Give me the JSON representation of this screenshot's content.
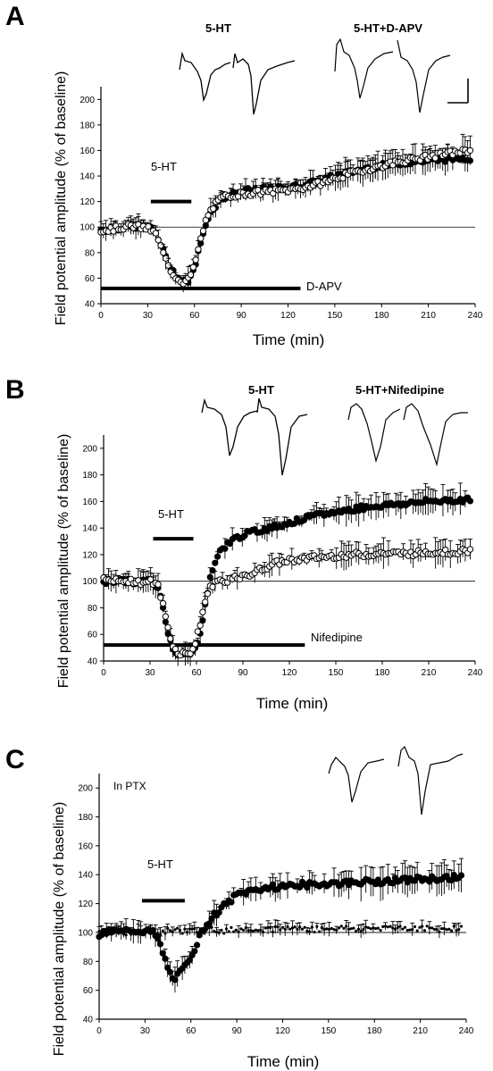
{
  "chart_data": [
    {
      "panel": "A",
      "type": "scatter",
      "xlabel": "Time (min)",
      "ylabel": "Field potential amplitude (% of baseline)",
      "xlim": [
        0,
        240
      ],
      "ylim": [
        40,
        210
      ],
      "xticks": [
        0,
        30,
        60,
        90,
        120,
        150,
        180,
        210,
        240
      ],
      "yticks": [
        40,
        60,
        80,
        100,
        120,
        140,
        160,
        180,
        200
      ],
      "reference_line": 100,
      "trace_labels": [
        "5-HT",
        "5-HT+D-APV"
      ],
      "bars": [
        {
          "label": "5-HT",
          "start": 32,
          "end": 58,
          "level": 120
        },
        {
          "label": "D-APV",
          "start": 0,
          "end": 128,
          "level": 52
        }
      ],
      "scale_bar": true,
      "series": [
        {
          "marker": "filled",
          "x": [
            0,
            5,
            10,
            15,
            20,
            25,
            30,
            35,
            38,
            41,
            44,
            47,
            50,
            53,
            56,
            59,
            62,
            65,
            68,
            72,
            76,
            80,
            85,
            90,
            100,
            110,
            120,
            130,
            140,
            150,
            160,
            170,
            180,
            190,
            200,
            210,
            220,
            230,
            238
          ],
          "y": [
            98,
            98,
            99,
            100,
            100,
            101,
            100,
            96,
            88,
            78,
            70,
            64,
            60,
            57,
            58,
            64,
            78,
            92,
            106,
            115,
            120,
            124,
            126,
            128,
            129,
            130,
            131,
            133,
            136,
            140,
            143,
            146,
            148,
            150,
            151,
            152,
            153,
            154,
            154
          ]
        },
        {
          "marker": "open",
          "x": [
            0,
            5,
            10,
            15,
            20,
            25,
            30,
            35,
            38,
            41,
            44,
            47,
            50,
            53,
            56,
            59,
            62,
            65,
            68,
            72,
            76,
            80,
            85,
            90,
            100,
            110,
            120,
            130,
            140,
            150,
            160,
            170,
            180,
            190,
            200,
            210,
            220,
            230,
            238
          ],
          "y": [
            97,
            98,
            99,
            100,
            101,
            100,
            99,
            95,
            86,
            76,
            68,
            62,
            59,
            57,
            59,
            66,
            80,
            95,
            108,
            116,
            121,
            124,
            125,
            126,
            127,
            128,
            129,
            131,
            134,
            138,
            142,
            145,
            148,
            151,
            153,
            155,
            157,
            159,
            160
          ]
        }
      ]
    },
    {
      "panel": "B",
      "type": "scatter",
      "xlabel": "Time (min)",
      "ylabel": "Field potential amplitude (% of baseline)",
      "xlim": [
        0,
        240
      ],
      "ylim": [
        40,
        210
      ],
      "xticks": [
        0,
        30,
        60,
        90,
        120,
        150,
        180,
        210,
        240
      ],
      "yticks": [
        40,
        60,
        80,
        100,
        120,
        140,
        160,
        180,
        200
      ],
      "reference_line": 100,
      "trace_labels": [
        "5-HT",
        "5-HT+Nifedipine"
      ],
      "bars": [
        {
          "label": "5-HT",
          "start": 32,
          "end": 58,
          "level": 132
        },
        {
          "label": "Nifedipine",
          "start": 0,
          "end": 130,
          "level": 52
        }
      ],
      "series": [
        {
          "marker": "filled",
          "x": [
            0,
            5,
            10,
            15,
            20,
            25,
            30,
            35,
            38,
            41,
            44,
            47,
            50,
            53,
            56,
            59,
            62,
            65,
            68,
            72,
            76,
            80,
            85,
            90,
            100,
            110,
            120,
            130,
            140,
            150,
            160,
            170,
            180,
            190,
            200,
            210,
            220,
            230,
            238
          ],
          "y": [
            100,
            100,
            101,
            100,
            99,
            100,
            100,
            96,
            82,
            65,
            52,
            46,
            45,
            44,
            45,
            48,
            60,
            78,
            98,
            115,
            124,
            128,
            132,
            135,
            138,
            141,
            144,
            147,
            150,
            152,
            154,
            156,
            157,
            158,
            159,
            160,
            161,
            161,
            162
          ]
        },
        {
          "marker": "open",
          "x": [
            0,
            5,
            10,
            15,
            20,
            25,
            30,
            35,
            38,
            41,
            44,
            47,
            50,
            53,
            56,
            59,
            62,
            65,
            68,
            72,
            76,
            80,
            85,
            90,
            100,
            110,
            120,
            130,
            140,
            150,
            160,
            170,
            180,
            190,
            200,
            210,
            220,
            230,
            238
          ],
          "y": [
            101,
            100,
            100,
            101,
            100,
            99,
            100,
            97,
            84,
            68,
            54,
            47,
            46,
            45,
            47,
            52,
            66,
            82,
            94,
            100,
            100,
            101,
            102,
            103,
            108,
            113,
            116,
            117,
            118,
            119,
            120,
            120,
            121,
            121,
            121,
            122,
            122,
            122,
            123
          ]
        }
      ]
    },
    {
      "panel": "C",
      "type": "scatter",
      "xlabel": "Time (min)",
      "ylabel": "Field potential amplitude (% of baseline)",
      "xlim": [
        0,
        240
      ],
      "ylim": [
        40,
        210
      ],
      "xticks": [
        0,
        30,
        60,
        90,
        120,
        150,
        180,
        210,
        240
      ],
      "yticks": [
        40,
        60,
        80,
        100,
        120,
        140,
        160,
        180,
        200
      ],
      "reference_line": 100,
      "note": "In PTX",
      "bars": [
        {
          "label": "5-HT",
          "start": 28,
          "end": 56,
          "level": 122
        }
      ],
      "series": [
        {
          "marker": "filled",
          "x": [
            0,
            5,
            10,
            15,
            20,
            25,
            30,
            35,
            38,
            41,
            44,
            47,
            50,
            53,
            56,
            59,
            62,
            65,
            68,
            72,
            76,
            80,
            85,
            90,
            100,
            110,
            120,
            130,
            140,
            150,
            160,
            170,
            180,
            190,
            200,
            210,
            220,
            230,
            238
          ],
          "y": [
            99,
            100,
            101,
            100,
            102,
            101,
            101,
            100,
            96,
            88,
            78,
            70,
            69,
            72,
            76,
            82,
            88,
            95,
            102,
            108,
            113,
            117,
            121,
            126,
            129,
            131,
            132,
            133,
            133,
            134,
            134,
            135,
            135,
            136,
            136,
            137,
            137,
            138,
            139
          ]
        },
        {
          "marker": "small-dot",
          "x": [
            0,
            5,
            10,
            15,
            20,
            25,
            30,
            35,
            40,
            45,
            50,
            55,
            60,
            65,
            70,
            75,
            80,
            90,
            100,
            110,
            120,
            130,
            140,
            150,
            160,
            170,
            180,
            190,
            200,
            210,
            220,
            230,
            238
          ],
          "y": [
            100,
            100,
            101,
            100,
            100,
            101,
            100,
            101,
            100,
            101,
            102,
            101,
            101,
            102,
            101,
            102,
            101,
            102,
            103,
            102,
            103,
            103,
            102,
            103,
            103,
            102,
            103,
            104,
            103,
            103,
            102,
            103,
            103
          ]
        }
      ]
    }
  ],
  "panels": [
    {
      "letter": "A",
      "ylabel": "Field potential amplitude (% of baseline)",
      "xlabel": "Time (min)",
      "trace_label_1": "5-HT",
      "trace_label_2": "5-HT+D-APV",
      "bar_5ht": "5-HT",
      "bar_drug": "D-APV"
    },
    {
      "letter": "B",
      "ylabel": "Field potential amplitude (% of baseline)",
      "xlabel": "Time (min)",
      "trace_label_1": "5-HT",
      "trace_label_2": "5-HT+Nifedipine",
      "bar_5ht": "5-HT",
      "bar_drug": "Nifedipine"
    },
    {
      "letter": "C",
      "ylabel": "Field potential amplitude (% of baseline)",
      "xlabel": "Time (min)",
      "note": "In PTX",
      "bar_5ht": "5-HT"
    }
  ]
}
